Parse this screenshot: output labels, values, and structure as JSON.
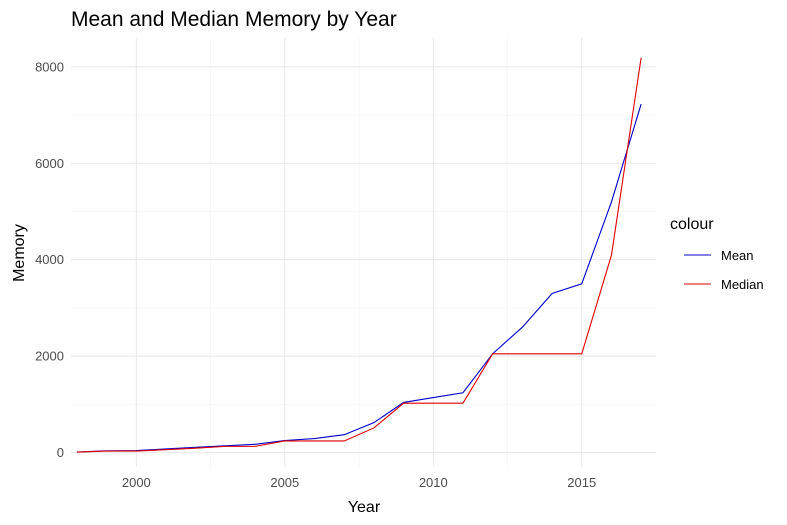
{
  "chart_data": {
    "type": "line",
    "title": "Mean and Median Memory by Year",
    "xlabel": "Year",
    "ylabel": "Memory",
    "xlim": [
      1997.8,
      2017.5
    ],
    "ylim": [
      -300,
      8600
    ],
    "xticks": [
      2000,
      2005,
      2010,
      2015
    ],
    "yticks": [
      0,
      2000,
      4000,
      6000,
      8000
    ],
    "grid": true,
    "legend": {
      "title": "colour",
      "position": "right"
    },
    "x": [
      1998,
      1999,
      2000,
      2001,
      2002,
      2003,
      2004,
      2005,
      2006,
      2007,
      2008,
      2009,
      2010,
      2011,
      2012,
      2013,
      2014,
      2015,
      2016,
      2017
    ],
    "series": [
      {
        "name": "Mean",
        "color": "#0000cc",
        "values": [
          10,
          35,
          40,
          75,
          110,
          140,
          170,
          250,
          290,
          370,
          620,
          1040,
          1140,
          1240,
          2050,
          2600,
          3300,
          3500,
          5200,
          7230
        ]
      },
      {
        "name": "Median",
        "color": "#e00000",
        "values": [
          10,
          30,
          30,
          60,
          90,
          128,
          128,
          240,
          240,
          240,
          510,
          1024,
          1024,
          1024,
          2048,
          2048,
          2048,
          2048,
          4096,
          8192
        ]
      }
    ]
  }
}
